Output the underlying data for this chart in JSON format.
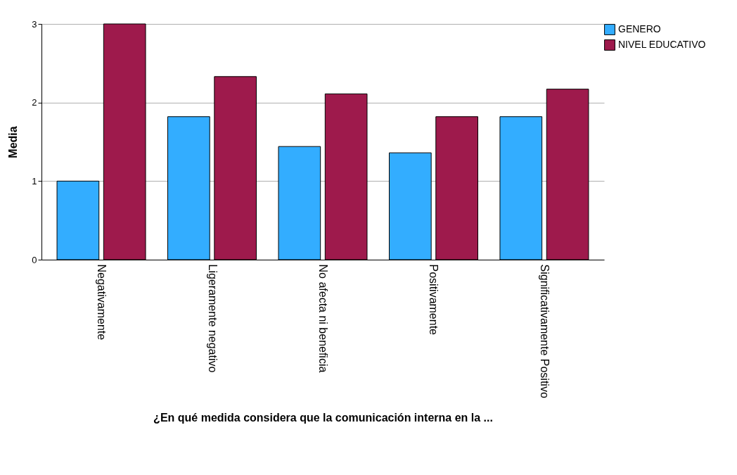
{
  "chart_data": {
    "type": "bar",
    "xlabel": "¿En qué medida considera que la comunicación interna en la ...",
    "ylabel": "Media",
    "categories": [
      "Negativamente",
      "Ligeramente negativo",
      "No afecta ni beneficia",
      "Positivamente",
      "Significativamente Positivo"
    ],
    "series": [
      {
        "name": "GENERO",
        "color": "#33adff",
        "values": [
          1.0,
          1.82,
          1.44,
          1.36,
          1.82
        ]
      },
      {
        "name": "NIVEL EDUCATIVO",
        "color": "#9e1a4c",
        "values": [
          3.0,
          2.33,
          2.11,
          1.82,
          2.17
        ]
      }
    ],
    "ylim": [
      0,
      3
    ],
    "yticks": [
      0,
      1,
      2,
      3
    ],
    "grid": "y",
    "legend": "top right"
  }
}
